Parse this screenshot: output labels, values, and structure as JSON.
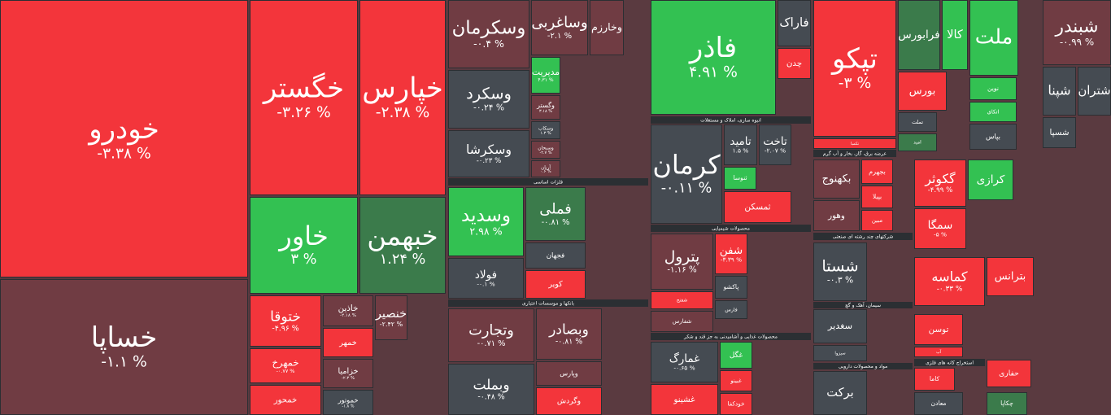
{
  "sectors": [
    {
      "label": "فلزات اساسی"
    },
    {
      "label": "بانکها و موسسات اعتباری"
    },
    {
      "label": "انبوه سازی، املاک و مستغلات"
    },
    {
      "label": "محصولات شیمیایی"
    },
    {
      "label": "محصولات غذایی و آشامیدنی به جز قند و شکر"
    },
    {
      "label": "عرضه برق، گاز، بخار و آب گرم"
    },
    {
      "label": "شرکتهای چند رشته ای صنعتی"
    },
    {
      "label": "سیمان، آهک و گچ"
    },
    {
      "label": "استخراج کانه های فلزی"
    },
    {
      "label": "مواد و محصولات دارویی"
    }
  ],
  "tiles": [
    {
      "name": "خودرو",
      "change": "-۳.۳۸ %",
      "color": "#f3353b"
    },
    {
      "name": "خساپا",
      "change": "-۱.۱ %",
      "color": "#703c43"
    },
    {
      "name": "خگستر",
      "change": "-۳.۲۶ %",
      "color": "#f3353b"
    },
    {
      "name": "خپارس",
      "change": "-۲.۳۸ %",
      "color": "#f3353b"
    },
    {
      "name": "خاور",
      "change": "۳ %",
      "color": "#33c152"
    },
    {
      "name": "خبهمن",
      "change": "۱.۲۴ %",
      "color": "#3b7b4b"
    },
    {
      "name": "ختوقا",
      "change": "-۴.۹۶ %",
      "color": "#f3353b"
    },
    {
      "name": "خمهرخ",
      "change": "-۰.۷۷ %",
      "color": "#f3353b"
    },
    {
      "name": "خمحور",
      "color": "#f3353b"
    },
    {
      "name": "خاذین",
      "change": "-۲.۱۸ %",
      "color": "#703c43"
    },
    {
      "name": "خمهر",
      "color": "#f3353b"
    },
    {
      "name": "خزامیا",
      "change": "-۲.۳ %",
      "color": "#703c43"
    },
    {
      "name": "خموتور",
      "change": "-۱.۸ %",
      "color": "#454b52"
    },
    {
      "name": "خنصیر",
      "change": "-۲.۴۲ %",
      "color": "#703c43"
    },
    {
      "name": "وسکرمان",
      "change": "-۰.۴ %",
      "color": "#703c43"
    },
    {
      "name": "وسکرد",
      "change": "-۰.۲۴ %",
      "color": "#454b52"
    },
    {
      "name": "وسکرشا",
      "change": "-۰.۲۳ %",
      "color": "#454b52"
    },
    {
      "name": "وساغربی",
      "change": "-۲.۱ %",
      "color": "#703c43"
    },
    {
      "name": "وخارزم",
      "color": "#703c43"
    },
    {
      "name": "مدیریت",
      "change": "۴.۳۱ %",
      "color": "#33c152"
    },
    {
      "name": "وگستر",
      "change": "۳.۱۸ %",
      "color": "#703c43"
    },
    {
      "name": "وسکاب",
      "change": "۱.۳ %",
      "color": "#454b52"
    },
    {
      "name": "وسبحان",
      "change": "-۲.۷ %",
      "color": "#703c43"
    },
    {
      "name": "آریان",
      "change": "۰.۶ %",
      "color": "#703c43"
    },
    {
      "name": "وسدید",
      "change": "۲.۹۸ %",
      "color": "#33c152"
    },
    {
      "name": "فولاد",
      "change": "-۰.۱ %",
      "color": "#454b52"
    },
    {
      "name": "فملی",
      "change": "-۰.۸۱ %",
      "color": "#3b7b4b"
    },
    {
      "name": "فجهان",
      "color": "#454b52"
    },
    {
      "name": "کویر",
      "color": "#f3353b"
    },
    {
      "name": "وتجارت",
      "change": "-۰.۷۱ %",
      "color": "#703c43"
    },
    {
      "name": "وبملت",
      "change": "-۰.۴۸ %",
      "color": "#454b52"
    },
    {
      "name": "وبصادر",
      "change": "-۰.۸۱ %",
      "color": "#703c43"
    },
    {
      "name": "وپارس",
      "color": "#703c43"
    },
    {
      "name": "وگردش",
      "color": "#f3353b"
    },
    {
      "name": "فاذر",
      "change": "۴.۹۱ %",
      "color": "#33c152"
    },
    {
      "name": "فاراک",
      "color": "#454b52"
    },
    {
      "name": "چدن",
      "color": "#f3353b"
    },
    {
      "name": "کرمان",
      "change": "-۰.۱۱ %",
      "color": "#454b52"
    },
    {
      "name": "تامید",
      "change": "۱.۵ %",
      "color": "#454b52"
    },
    {
      "name": "تاخت",
      "change": "-۲.۰۷ %",
      "color": "#454b52"
    },
    {
      "name": "ثنوسا",
      "color": "#33c152"
    },
    {
      "name": "ثمسکن",
      "color": "#f3353b"
    },
    {
      "name": "پترول",
      "change": "-۱.۱۶ %",
      "color": "#703c43"
    },
    {
      "name": "شفن",
      "change": "-۳.۳۹ %",
      "color": "#f3353b"
    },
    {
      "name": "شفنح",
      "color": "#f3353b"
    },
    {
      "name": "شفارس",
      "color": "#703c43"
    },
    {
      "name": "پاکشو",
      "color": "#454b52"
    },
    {
      "name": "فارس",
      "color": "#454b52"
    },
    {
      "name": "غمارگ",
      "change": "-۰.۶۵ %",
      "color": "#454b52"
    },
    {
      "name": "غشینو",
      "color": "#f3353b"
    },
    {
      "name": "غگل",
      "color": "#33c152"
    },
    {
      "name": "غبینو",
      "color": "#f3353b"
    },
    {
      "name": "خودکفا",
      "color": "#f3353b"
    },
    {
      "name": "تپکو",
      "change": "-۳ %",
      "color": "#f3353b"
    },
    {
      "name": "تکمبا",
      "color": "#f3353b"
    },
    {
      "name": "فرابورس",
      "color": "#3b7b4b"
    },
    {
      "name": "کالا",
      "color": "#33c152"
    },
    {
      "name": "بورس",
      "color": "#f3353b"
    },
    {
      "name": "تملت",
      "color": "#454b52"
    },
    {
      "name": "امید",
      "color": "#3b7b4b"
    },
    {
      "name": "ملت",
      "color": "#33c152"
    },
    {
      "name": "نوین",
      "color": "#33c152"
    },
    {
      "name": "اتکای",
      "color": "#33c152"
    },
    {
      "name": "بپاس",
      "color": "#454b52"
    },
    {
      "name": "شبندر",
      "change": "-۰.۹۹ %",
      "color": "#703c43"
    },
    {
      "name": "شپنا",
      "color": "#454b52"
    },
    {
      "name": "شتران",
      "color": "#454b52"
    },
    {
      "name": "شسپا",
      "color": "#454b52"
    },
    {
      "name": "بکهنوج",
      "color": "#703c43"
    },
    {
      "name": "بجهرم",
      "color": "#f3353b"
    },
    {
      "name": "بپیلا",
      "color": "#f3353b"
    },
    {
      "name": "وهور",
      "color": "#703c43"
    },
    {
      "name": "مبین",
      "color": "#f3353b"
    },
    {
      "name": "گکوثر",
      "change": "-۴.۹۹ %",
      "color": "#f3353b"
    },
    {
      "name": "سمگا",
      "change": "-۵ %",
      "color": "#f3353b"
    },
    {
      "name": "کرازی",
      "color": "#33c152"
    },
    {
      "name": "شستا",
      "change": "-۰.۳ %",
      "color": "#454b52"
    },
    {
      "name": "کماسه",
      "change": "-۰.۳۳ %",
      "color": "#f3353b"
    },
    {
      "name": "بترانس",
      "color": "#f3353b"
    },
    {
      "name": "سغدیر",
      "color": "#454b52"
    },
    {
      "name": "سیزوا",
      "color": "#454b52"
    },
    {
      "name": "توسن",
      "color": "#f3353b"
    },
    {
      "name": "آپ",
      "color": "#f3353b"
    },
    {
      "name": "برکت",
      "color": "#454b52"
    },
    {
      "name": "کاما",
      "color": "#f3353b"
    },
    {
      "name": "معادن",
      "color": "#454b52"
    },
    {
      "name": "حفاری",
      "color": "#f3353b"
    },
    {
      "name": "چکاپا",
      "color": "#3b7b4b"
    }
  ]
}
